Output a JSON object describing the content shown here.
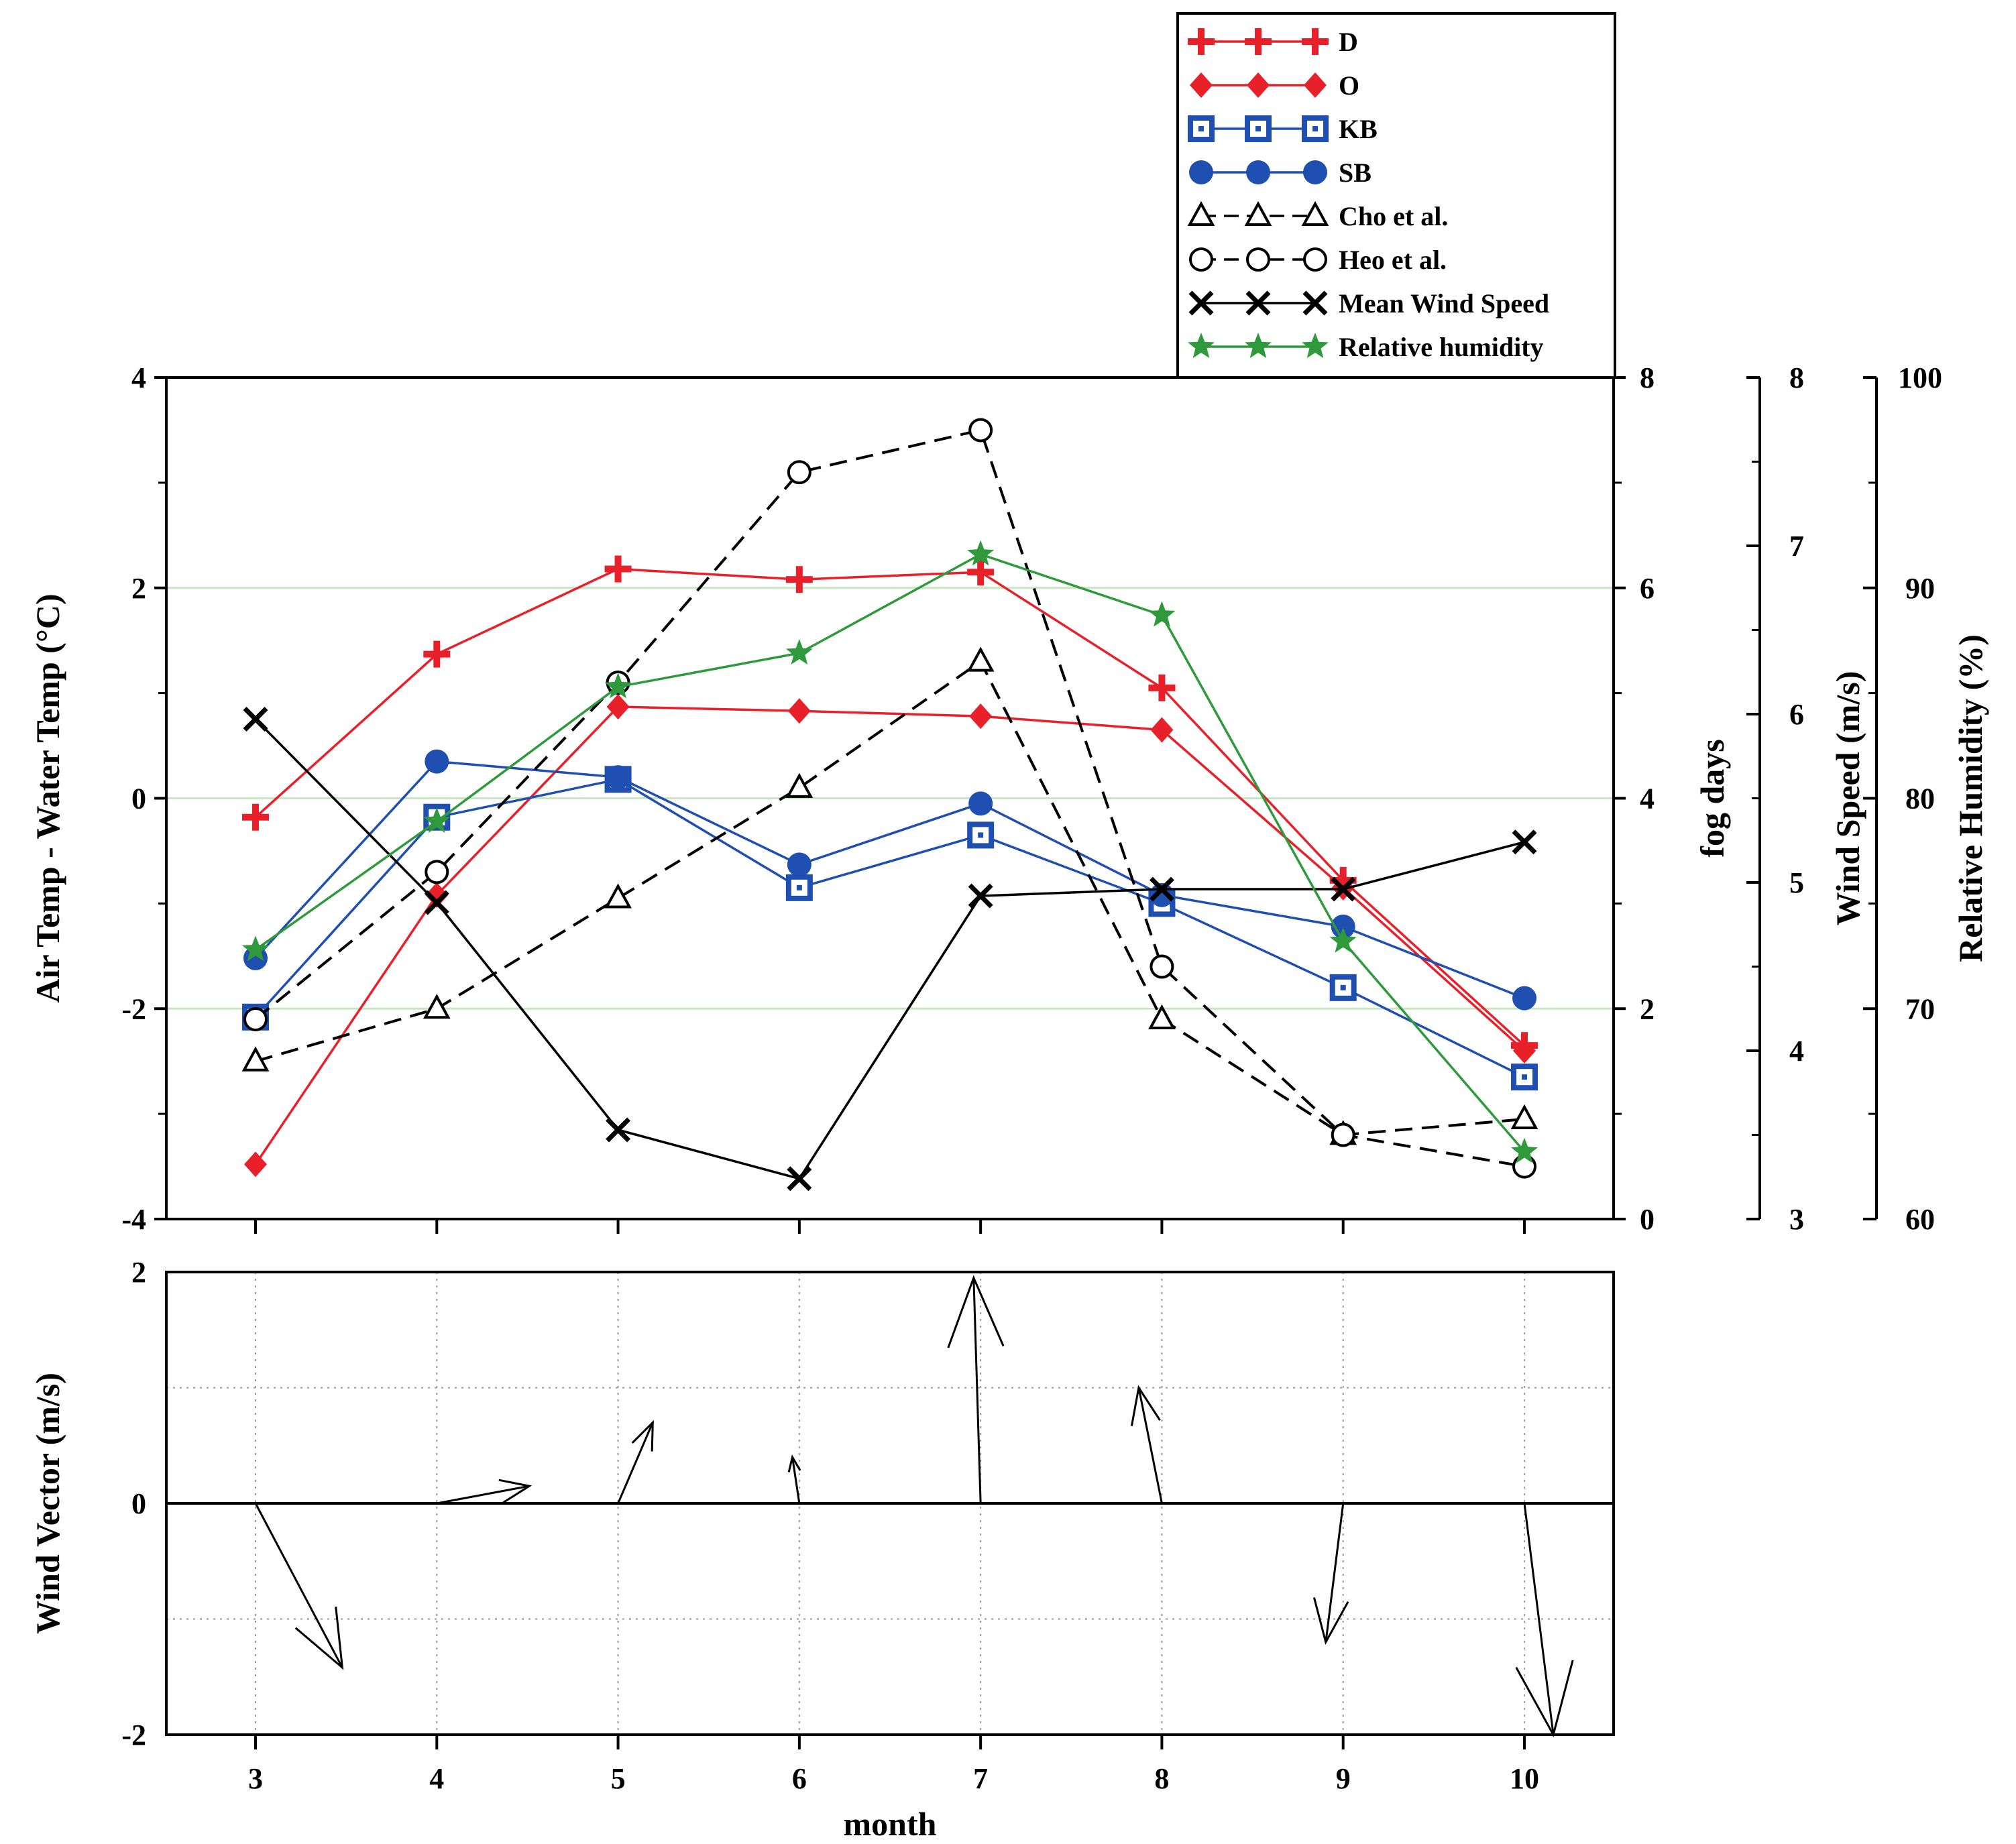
{
  "chart_data": {
    "type": "line",
    "x": [
      3,
      4,
      5,
      6,
      7,
      8,
      9,
      10
    ],
    "xlabel": "month",
    "xticks": [
      "3",
      "4",
      "5",
      "6",
      "7",
      "8",
      "9",
      "10"
    ],
    "top_panel": {
      "ylabel_left": "Air Temp - Water Temp (°C)",
      "ylim_left": [
        -4,
        4
      ],
      "yticks_left": [
        "-4",
        "-2",
        "0",
        "2",
        "4"
      ],
      "ylabel_fog": "fog days",
      "ylim_fog": [
        0,
        8
      ],
      "yticks_fog": [
        "0",
        "2",
        "4",
        "6",
        "8"
      ],
      "ylabel_wind": "Wind Speed (m/s)",
      "ylim_wind": [
        3,
        8
      ],
      "yticks_wind": [
        "3",
        "4",
        "5",
        "6",
        "7",
        "8"
      ],
      "ylabel_rh": "Relative Humidity (%)",
      "ylim_rh": [
        60,
        100
      ],
      "yticks_rh": [
        "60",
        "70",
        "80",
        "90",
        "100"
      ],
      "gridlines_left": [
        -2,
        0,
        2
      ],
      "series": [
        {
          "name": "D",
          "axis": "temp",
          "color": "#e8202a",
          "marker": "plus",
          "dash": false,
          "values": [
            -0.18,
            1.37,
            2.18,
            2.08,
            2.15,
            1.05,
            -0.78,
            -2.35
          ]
        },
        {
          "name": "O",
          "axis": "temp",
          "color": "#e8202a",
          "marker": "diamond",
          "dash": false,
          "values": [
            -3.48,
            -0.92,
            0.87,
            0.83,
            0.78,
            0.65,
            -0.85,
            -2.4
          ]
        },
        {
          "name": "KB",
          "axis": "temp",
          "color": "#1f4fb0",
          "marker": "square",
          "dash": false,
          "values": [
            -2.08,
            -0.18,
            0.18,
            -0.85,
            -0.35,
            -1.0,
            -1.8,
            -2.65
          ]
        },
        {
          "name": "SB",
          "axis": "temp",
          "color": "#1f4fb0",
          "marker": "circle",
          "dash": false,
          "values": [
            -1.52,
            0.35,
            0.2,
            -0.63,
            -0.05,
            -0.92,
            -1.22,
            -1.9
          ]
        },
        {
          "name": "Cho et al.",
          "axis": "fog",
          "color": "#000000",
          "marker": "triangle",
          "dash": true,
          "values": [
            1.5,
            2.0,
            3.05,
            4.1,
            5.3,
            1.9,
            0.8,
            0.95
          ]
        },
        {
          "name": "Heo et al.",
          "axis": "fog",
          "color": "#000000",
          "marker": "open-circle",
          "dash": true,
          "values": [
            1.9,
            3.3,
            5.1,
            7.1,
            7.5,
            2.4,
            0.8,
            0.5
          ]
        },
        {
          "name": "Mean Wind Speed",
          "axis": "wind",
          "color": "#000000",
          "marker": "cross",
          "dash": false,
          "values": [
            5.97,
            4.88,
            3.53,
            3.24,
            4.92,
            4.96,
            4.96,
            5.24
          ]
        },
        {
          "name": "Relative humidity",
          "axis": "rh",
          "color": "#2e9a3c",
          "marker": "star",
          "dash": false,
          "values": [
            72.8,
            78.9,
            85.3,
            86.9,
            91.6,
            88.7,
            73.2,
            63.2
          ]
        }
      ]
    },
    "bottom_panel": {
      "ylabel": "Wind Vector (m/s)",
      "ylim": [
        -2,
        2
      ],
      "yticks": [
        "-2",
        "0",
        "2"
      ],
      "gridlines": [
        -1,
        1
      ],
      "vectors": [
        {
          "month": 3,
          "u": 0.75,
          "v": -1.42
        },
        {
          "month": 4,
          "u": 0.8,
          "v": 0.15
        },
        {
          "month": 5,
          "u": 0.3,
          "v": 0.7
        },
        {
          "month": 6,
          "u": -0.06,
          "v": 0.4
        },
        {
          "month": 7,
          "u": -0.06,
          "v": 1.95
        },
        {
          "month": 8,
          "u": -0.2,
          "v": 1.0
        },
        {
          "month": 9,
          "u": -0.15,
          "v": -1.2
        },
        {
          "month": 10,
          "u": 0.25,
          "v": -2.0
        }
      ]
    }
  }
}
